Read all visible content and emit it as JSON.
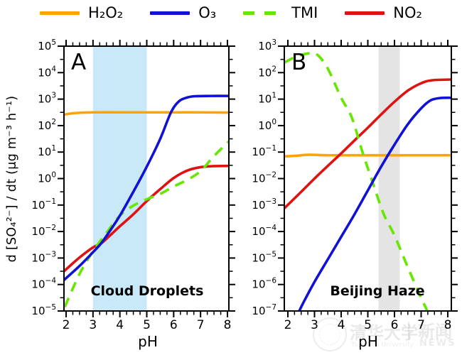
{
  "axes": {
    "x_label": "pH",
    "y_label": "d [SO₄²⁻] / dt  (μg m⁻³ h⁻¹)"
  },
  "legend": {
    "items": [
      {
        "id": "h2o2",
        "label": "H₂O₂",
        "color": "#ffa400",
        "dashed": false
      },
      {
        "id": "o3",
        "label": "O₃",
        "color": "#1111d6",
        "dashed": false
      },
      {
        "id": "tmi",
        "label": "TMI",
        "color": "#66e600",
        "dashed": true
      },
      {
        "id": "no2",
        "label": "NO₂",
        "color": "#e01111",
        "dashed": false
      }
    ]
  },
  "chart_data": [
    {
      "type": "line",
      "panel": "A",
      "caption": "Cloud Droplets",
      "xlabel": "pH",
      "x_ticks": [
        2,
        3,
        4,
        5,
        6,
        7,
        8
      ],
      "x_minor_step": 0.25,
      "y_scale": "log10",
      "y_units": "µg m-3 h-1",
      "y_exponent_range": [
        -5,
        5
      ],
      "y_tick_exponents": [
        5,
        4,
        3,
        2,
        1,
        0,
        -1,
        -2,
        -3,
        -4,
        -5
      ],
      "highlight_band": {
        "x0": 3,
        "x1": 5,
        "color": "#c9e9f8"
      },
      "series": [
        {
          "id": "h2o2",
          "name": "H₂O₂",
          "color": "#ffa400",
          "dashed": false,
          "points": [
            [
              1.9,
              2.41
            ],
            [
              2.2,
              2.46
            ],
            [
              2.6,
              2.49
            ],
            [
              3,
              2.5
            ],
            [
              4,
              2.5
            ],
            [
              5,
              2.5
            ],
            [
              6,
              2.5
            ],
            [
              7,
              2.5
            ],
            [
              8.1,
              2.49
            ]
          ]
        },
        {
          "id": "o3",
          "name": "O₃",
          "color": "#1111d6",
          "dashed": false,
          "points": [
            [
              1.9,
              -3.85
            ],
            [
              2.5,
              -3.3
            ],
            [
              3,
              -2.78
            ],
            [
              3.3,
              -2.45
            ],
            [
              3.6,
              -2.02
            ],
            [
              4,
              -1.4
            ],
            [
              4.5,
              -0.5
            ],
            [
              5,
              0.45
            ],
            [
              5.5,
              1.5
            ],
            [
              5.9,
              2.5
            ],
            [
              6.2,
              2.92
            ],
            [
              6.5,
              3.06
            ],
            [
              6.8,
              3.11
            ],
            [
              7.4,
              3.12
            ],
            [
              8.1,
              3.12
            ]
          ]
        },
        {
          "id": "tmi",
          "name": "TMI",
          "color": "#66e600",
          "dashed": true,
          "points": [
            [
              1.95,
              -4.85
            ],
            [
              2.5,
              -3.6
            ],
            [
              3,
              -2.75
            ],
            [
              3.5,
              -2.05
            ],
            [
              4,
              -1.4
            ],
            [
              4.5,
              -1.02
            ],
            [
              5,
              -0.78
            ],
            [
              5.5,
              -0.58
            ],
            [
              6,
              -0.3
            ],
            [
              6.5,
              -0.05
            ],
            [
              7,
              0.28
            ],
            [
              7.5,
              0.85
            ],
            [
              8.1,
              1.45
            ]
          ]
        },
        {
          "id": "no2",
          "name": "NO₂",
          "color": "#e01111",
          "dashed": false,
          "points": [
            [
              1.9,
              -3.52
            ],
            [
              2.5,
              -2.98
            ],
            [
              3,
              -2.6
            ],
            [
              3.3,
              -2.45
            ],
            [
              3.6,
              -2.18
            ],
            [
              4,
              -1.8
            ],
            [
              4.5,
              -1.35
            ],
            [
              5,
              -0.85
            ],
            [
              5.5,
              -0.4
            ],
            [
              6,
              0.02
            ],
            [
              6.5,
              0.3
            ],
            [
              7,
              0.43
            ],
            [
              7.5,
              0.47
            ],
            [
              8.1,
              0.48
            ]
          ]
        }
      ]
    },
    {
      "type": "line",
      "panel": "B",
      "caption": "Beijing Haze",
      "xlabel": "pH",
      "x_ticks": [
        2,
        3,
        4,
        5,
        6,
        7,
        8
      ],
      "x_minor_step": 0.25,
      "y_scale": "log10",
      "y_units": "µg m-3 h-1",
      "y_exponent_range": [
        -7,
        3
      ],
      "y_tick_exponents": [
        3,
        2,
        1,
        0,
        -1,
        -2,
        -3,
        -4,
        -5,
        -6,
        -7
      ],
      "highlight_band": {
        "x0": 5.4,
        "x1": 6.2,
        "color": "#e4e4e4"
      },
      "series": [
        {
          "id": "h2o2",
          "name": "H₂O₂",
          "color": "#ffa400",
          "dashed": false,
          "points": [
            [
              1.87,
              -1.16
            ],
            [
              2.3,
              -1.14
            ],
            [
              2.8,
              -1.1
            ],
            [
              3.5,
              -1.12
            ],
            [
              5,
              -1.12
            ],
            [
              7,
              -1.12
            ],
            [
              8.13,
              -1.12
            ]
          ]
        },
        {
          "id": "o3",
          "name": "O₃",
          "color": "#1111d6",
          "dashed": false,
          "points": [
            [
              2.33,
              -7.2
            ],
            [
              2.6,
              -6.65
            ],
            [
              3,
              -5.9
            ],
            [
              3.5,
              -5.05
            ],
            [
              4,
              -4.2
            ],
            [
              4.5,
              -3.35
            ],
            [
              5,
              -2.45
            ],
            [
              5.5,
              -1.55
            ],
            [
              6,
              -0.72
            ],
            [
              6.5,
              0.05
            ],
            [
              7,
              0.65
            ],
            [
              7.35,
              0.95
            ],
            [
              7.7,
              1.04
            ],
            [
              8.13,
              1.05
            ]
          ]
        },
        {
          "id": "tmi",
          "name": "TMI",
          "color": "#66e600",
          "dashed": true,
          "points": [
            [
              1.87,
              2.38
            ],
            [
              2.3,
              2.6
            ],
            [
              2.8,
              2.73
            ],
            [
              3.1,
              2.68
            ],
            [
              3.5,
              2.15
            ],
            [
              4,
              1.05
            ],
            [
              4.4,
              0.3
            ],
            [
              4.8,
              -1.0
            ],
            [
              5.2,
              -2.2
            ],
            [
              5.6,
              -3.35
            ],
            [
              6,
              -4.15
            ],
            [
              6.5,
              -5.35
            ],
            [
              7,
              -6.5
            ],
            [
              7.35,
              -7.25
            ]
          ]
        },
        {
          "id": "no2",
          "name": "NO₂",
          "color": "#e01111",
          "dashed": false,
          "points": [
            [
              1.87,
              -3.12
            ],
            [
              2.5,
              -2.5
            ],
            [
              3,
              -2.0
            ],
            [
              3.5,
              -1.52
            ],
            [
              4,
              -1.05
            ],
            [
              4.5,
              -0.56
            ],
            [
              5,
              -0.08
            ],
            [
              5.5,
              0.42
            ],
            [
              6,
              0.9
            ],
            [
              6.5,
              1.32
            ],
            [
              7,
              1.6
            ],
            [
              7.4,
              1.71
            ],
            [
              8.13,
              1.74
            ]
          ]
        }
      ]
    }
  ],
  "watermark": {
    "org": "清华大学",
    "org_en": "Tsinghua University",
    "divider": "|",
    "news_cn": "新闻",
    "news_en": "NEWS"
  }
}
